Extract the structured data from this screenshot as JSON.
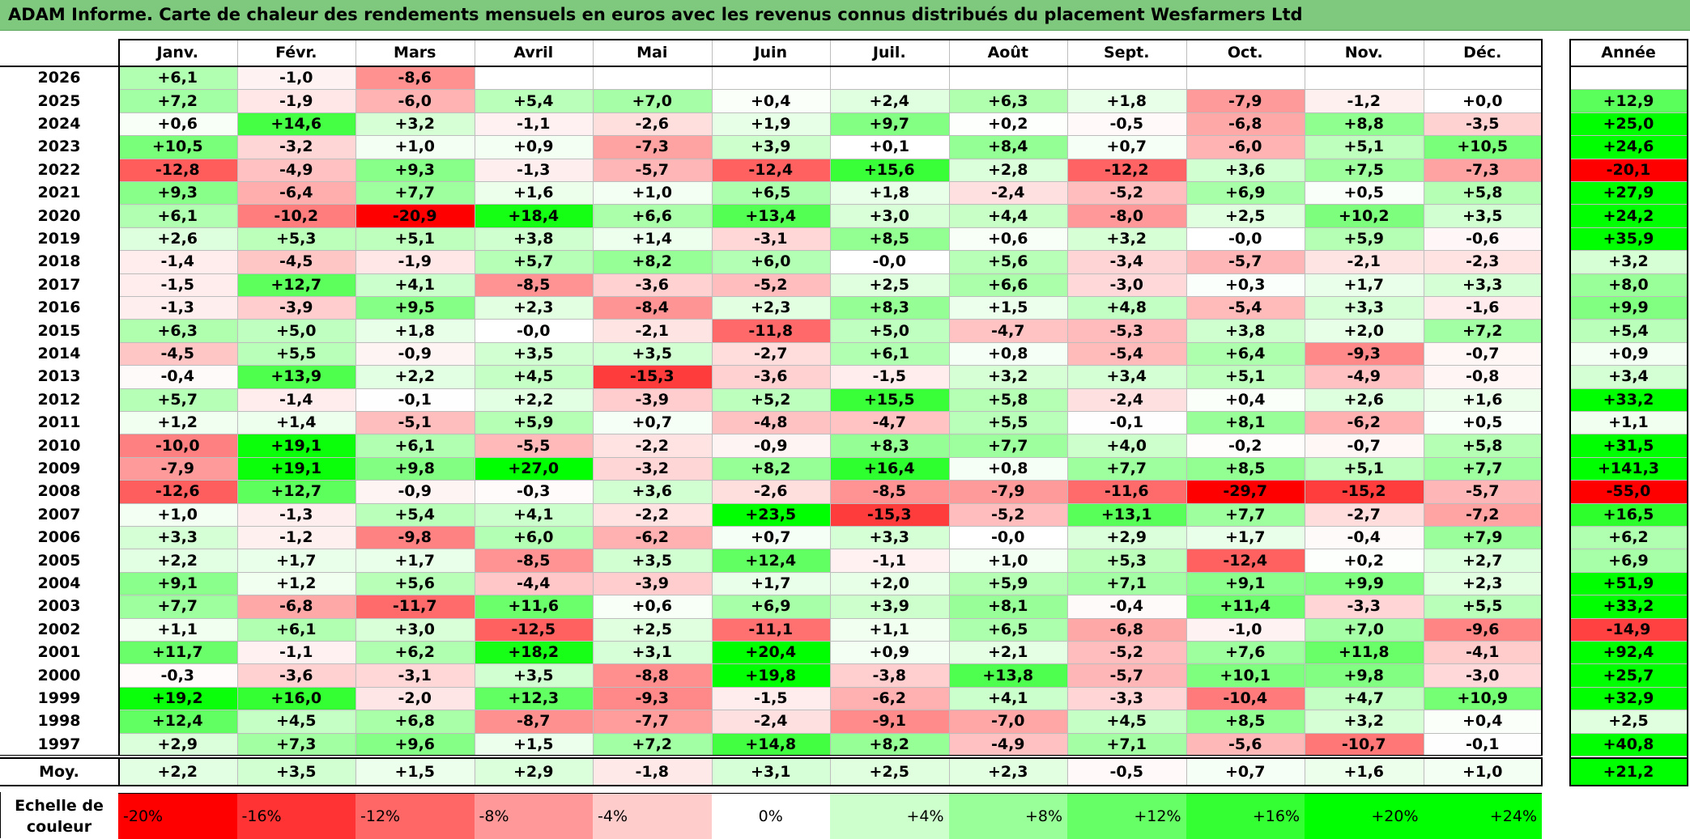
{
  "title": "ADAM Informe. Carte de chaleur des rendements mensuels en euros avec les revenus connus distribués du placement Wesfarmers Ltd",
  "chart_data": {
    "type": "heatmap",
    "title": "ADAM Informe. Carte de chaleur des rendements mensuels en euros avec les revenus connus distribués du placement Wesfarmers Ltd",
    "months": [
      "Janv.",
      "Févr.",
      "Mars",
      "Avril",
      "Mai",
      "Juin",
      "Juil.",
      "Août",
      "Sept.",
      "Oct.",
      "Nov.",
      "Déc."
    ],
    "year_header": "Année",
    "rows": [
      {
        "year": "2026",
        "values": [
          "+6,1",
          "-1,0",
          "-8,6",
          "",
          "",
          "",
          "",
          "",
          "",
          "",
          "",
          ""
        ],
        "annual": ""
      },
      {
        "year": "2025",
        "values": [
          "+7,2",
          "-1,9",
          "-6,0",
          "+5,4",
          "+7,0",
          "+0,4",
          "+2,4",
          "+6,3",
          "+1,8",
          "-7,9",
          "-1,2",
          "+0,0"
        ],
        "annual": "+12,9"
      },
      {
        "year": "2024",
        "values": [
          "+0,6",
          "+14,6",
          "+3,2",
          "-1,1",
          "-2,6",
          "+1,9",
          "+9,7",
          "+0,2",
          "-0,5",
          "-6,8",
          "+8,8",
          "-3,5"
        ],
        "annual": "+25,0"
      },
      {
        "year": "2023",
        "values": [
          "+10,5",
          "-3,2",
          "+1,0",
          "+0,9",
          "-7,3",
          "+3,9",
          "+0,1",
          "+8,4",
          "+0,7",
          "-6,0",
          "+5,1",
          "+10,5"
        ],
        "annual": "+24,6"
      },
      {
        "year": "2022",
        "values": [
          "-12,8",
          "-4,9",
          "+9,3",
          "-1,3",
          "-5,7",
          "-12,4",
          "+15,6",
          "+2,8",
          "-12,2",
          "+3,6",
          "+7,5",
          "-7,3"
        ],
        "annual": "-20,1"
      },
      {
        "year": "2021",
        "values": [
          "+9,3",
          "-6,4",
          "+7,7",
          "+1,6",
          "+1,0",
          "+6,5",
          "+1,8",
          "-2,4",
          "-5,2",
          "+6,9",
          "+0,5",
          "+5,8"
        ],
        "annual": "+27,9"
      },
      {
        "year": "2020",
        "values": [
          "+6,1",
          "-10,2",
          "-20,9",
          "+18,4",
          "+6,6",
          "+13,4",
          "+3,0",
          "+4,4",
          "-8,0",
          "+2,5",
          "+10,2",
          "+3,5"
        ],
        "annual": "+24,2"
      },
      {
        "year": "2019",
        "values": [
          "+2,6",
          "+5,3",
          "+5,1",
          "+3,8",
          "+1,4",
          "-3,1",
          "+8,5",
          "+0,6",
          "+3,2",
          "-0,0",
          "+5,9",
          "-0,6"
        ],
        "annual": "+35,9"
      },
      {
        "year": "2018",
        "values": [
          "-1,4",
          "-4,5",
          "-1,9",
          "+5,7",
          "+8,2",
          "+6,0",
          "-0,0",
          "+5,6",
          "-3,4",
          "-5,7",
          "-2,1",
          "-2,3"
        ],
        "annual": "+3,2"
      },
      {
        "year": "2017",
        "values": [
          "-1,5",
          "+12,7",
          "+4,1",
          "-8,5",
          "-3,6",
          "-5,2",
          "+2,5",
          "+6,6",
          "-3,0",
          "+0,3",
          "+1,7",
          "+3,3"
        ],
        "annual": "+8,0"
      },
      {
        "year": "2016",
        "values": [
          "-1,3",
          "-3,9",
          "+9,5",
          "+2,3",
          "-8,4",
          "+2,3",
          "+8,3",
          "+1,5",
          "+4,8",
          "-5,4",
          "+3,3",
          "-1,6"
        ],
        "annual": "+9,9"
      },
      {
        "year": "2015",
        "values": [
          "+6,3",
          "+5,0",
          "+1,8",
          "-0,0",
          "-2,1",
          "-11,8",
          "+5,0",
          "-4,7",
          "-5,3",
          "+3,8",
          "+2,0",
          "+7,2"
        ],
        "annual": "+5,4"
      },
      {
        "year": "2014",
        "values": [
          "-4,5",
          "+5,5",
          "-0,9",
          "+3,5",
          "+3,5",
          "-2,7",
          "+6,1",
          "+0,8",
          "-5,4",
          "+6,4",
          "-9,3",
          "-0,7"
        ],
        "annual": "+0,9"
      },
      {
        "year": "2013",
        "values": [
          "-0,4",
          "+13,9",
          "+2,2",
          "+4,5",
          "-15,3",
          "-3,6",
          "-1,5",
          "+3,2",
          "+3,4",
          "+5,1",
          "-4,9",
          "-0,8"
        ],
        "annual": "+3,4"
      },
      {
        "year": "2012",
        "values": [
          "+5,7",
          "-1,4",
          "-0,1",
          "+2,2",
          "-3,9",
          "+5,2",
          "+15,5",
          "+5,8",
          "-2,4",
          "+0,4",
          "+2,6",
          "+1,6"
        ],
        "annual": "+33,2"
      },
      {
        "year": "2011",
        "values": [
          "+1,2",
          "+1,4",
          "-5,1",
          "+5,9",
          "+0,7",
          "-4,8",
          "-4,7",
          "+5,5",
          "-0,1",
          "+8,1",
          "-6,2",
          "+0,5"
        ],
        "annual": "+1,1"
      },
      {
        "year": "2010",
        "values": [
          "-10,0",
          "+19,1",
          "+6,1",
          "-5,5",
          "-2,2",
          "-0,9",
          "+8,3",
          "+7,7",
          "+4,0",
          "-0,2",
          "-0,7",
          "+5,8"
        ],
        "annual": "+31,5"
      },
      {
        "year": "2009",
        "values": [
          "-7,9",
          "+19,1",
          "+9,8",
          "+27,0",
          "-3,2",
          "+8,2",
          "+16,4",
          "+0,8",
          "+7,7",
          "+8,5",
          "+5,1",
          "+7,7"
        ],
        "annual": "+141,3"
      },
      {
        "year": "2008",
        "values": [
          "-12,6",
          "+12,7",
          "-0,9",
          "-0,3",
          "+3,6",
          "-2,6",
          "-8,5",
          "-7,9",
          "-11,6",
          "-29,7",
          "-15,2",
          "-5,7"
        ],
        "annual": "-55,0"
      },
      {
        "year": "2007",
        "values": [
          "+1,0",
          "-1,3",
          "+5,4",
          "+4,1",
          "-2,2",
          "+23,5",
          "-15,3",
          "-5,2",
          "+13,1",
          "+7,7",
          "-2,7",
          "-7,2"
        ],
        "annual": "+16,5"
      },
      {
        "year": "2006",
        "values": [
          "+3,3",
          "-1,2",
          "-9,8",
          "+6,0",
          "-6,2",
          "+0,7",
          "+3,3",
          "-0,0",
          "+2,9",
          "+1,7",
          "-0,4",
          "+7,9"
        ],
        "annual": "+6,2"
      },
      {
        "year": "2005",
        "values": [
          "+2,2",
          "+1,7",
          "+1,7",
          "-8,5",
          "+3,5",
          "+12,4",
          "-1,1",
          "+1,0",
          "+5,3",
          "-12,4",
          "+0,2",
          "+2,7"
        ],
        "annual": "+6,9"
      },
      {
        "year": "2004",
        "values": [
          "+9,1",
          "+1,2",
          "+5,6",
          "-4,4",
          "-3,9",
          "+1,7",
          "+2,0",
          "+5,9",
          "+7,1",
          "+9,1",
          "+9,9",
          "+2,3"
        ],
        "annual": "+51,9"
      },
      {
        "year": "2003",
        "values": [
          "+7,7",
          "-6,8",
          "-11,7",
          "+11,6",
          "+0,6",
          "+6,9",
          "+3,9",
          "+8,1",
          "-0,4",
          "+11,4",
          "-3,3",
          "+5,5"
        ],
        "annual": "+33,2"
      },
      {
        "year": "2002",
        "values": [
          "+1,1",
          "+6,1",
          "+3,0",
          "-12,5",
          "+2,5",
          "-11,1",
          "+1,1",
          "+6,5",
          "-6,8",
          "-1,0",
          "+7,0",
          "-9,6"
        ],
        "annual": "-14,9"
      },
      {
        "year": "2001",
        "values": [
          "+11,7",
          "-1,1",
          "+6,2",
          "+18,2",
          "+3,1",
          "+20,4",
          "+0,9",
          "+2,1",
          "-5,2",
          "+7,6",
          "+11,8",
          "-4,1"
        ],
        "annual": "+92,4"
      },
      {
        "year": "2000",
        "values": [
          "-0,3",
          "-3,6",
          "-3,1",
          "+3,5",
          "-8,8",
          "+19,8",
          "-3,8",
          "+13,8",
          "-5,7",
          "+10,1",
          "+9,8",
          "-3,0"
        ],
        "annual": "+25,7"
      },
      {
        "year": "1999",
        "values": [
          "+19,2",
          "+16,0",
          "-2,0",
          "+12,3",
          "-9,3",
          "-1,5",
          "-6,2",
          "+4,1",
          "-3,3",
          "-10,4",
          "+4,7",
          "+10,9"
        ],
        "annual": "+32,9"
      },
      {
        "year": "1998",
        "values": [
          "+12,4",
          "+4,5",
          "+6,8",
          "-8,7",
          "-7,7",
          "-2,4",
          "-9,1",
          "-7,0",
          "+4,5",
          "+8,5",
          "+3,2",
          "+0,4"
        ],
        "annual": "+2,5"
      },
      {
        "year": "1997",
        "values": [
          "+2,9",
          "+7,3",
          "+9,6",
          "+1,5",
          "+7,2",
          "+14,8",
          "+8,2",
          "-4,9",
          "+7,1",
          "-5,6",
          "-10,7",
          "-0,1"
        ],
        "annual": "+40,8"
      }
    ],
    "average": {
      "label": "Moy.",
      "values": [
        "+2,2",
        "+3,5",
        "+1,5",
        "+2,9",
        "-1,8",
        "+3,1",
        "+2,5",
        "+2,3",
        "-0,5",
        "+0,7",
        "+1,6",
        "+1,0"
      ],
      "annual": "+21,2"
    },
    "scale": {
      "label": "Echelle de\ncouleur",
      "items": [
        {
          "text": "-20%",
          "value": -20,
          "color": "#ff0000"
        },
        {
          "text": "-16%",
          "value": -16,
          "color": "#ff3333"
        },
        {
          "text": "-12%",
          "value": -12,
          "color": "#ff6666"
        },
        {
          "text": "-8%",
          "value": -8,
          "color": "#ff9999"
        },
        {
          "text": "-4%",
          "value": -4,
          "color": "#ffcccc"
        },
        {
          "text": "0%",
          "value": 0,
          "color": "#ffffff"
        },
        {
          "text": "+4%",
          "value": 4,
          "color": "#ccffcc"
        },
        {
          "text": "+8%",
          "value": 8,
          "color": "#99ff99"
        },
        {
          "text": "+12%",
          "value": 12,
          "color": "#66ff66"
        },
        {
          "text": "+16%",
          "value": 16,
          "color": "#33ff33"
        },
        {
          "text": "+20%",
          "value": 20,
          "color": "#00ff00"
        },
        {
          "text": "+24%",
          "value": 24,
          "color": "#00ff00"
        }
      ]
    }
  }
}
